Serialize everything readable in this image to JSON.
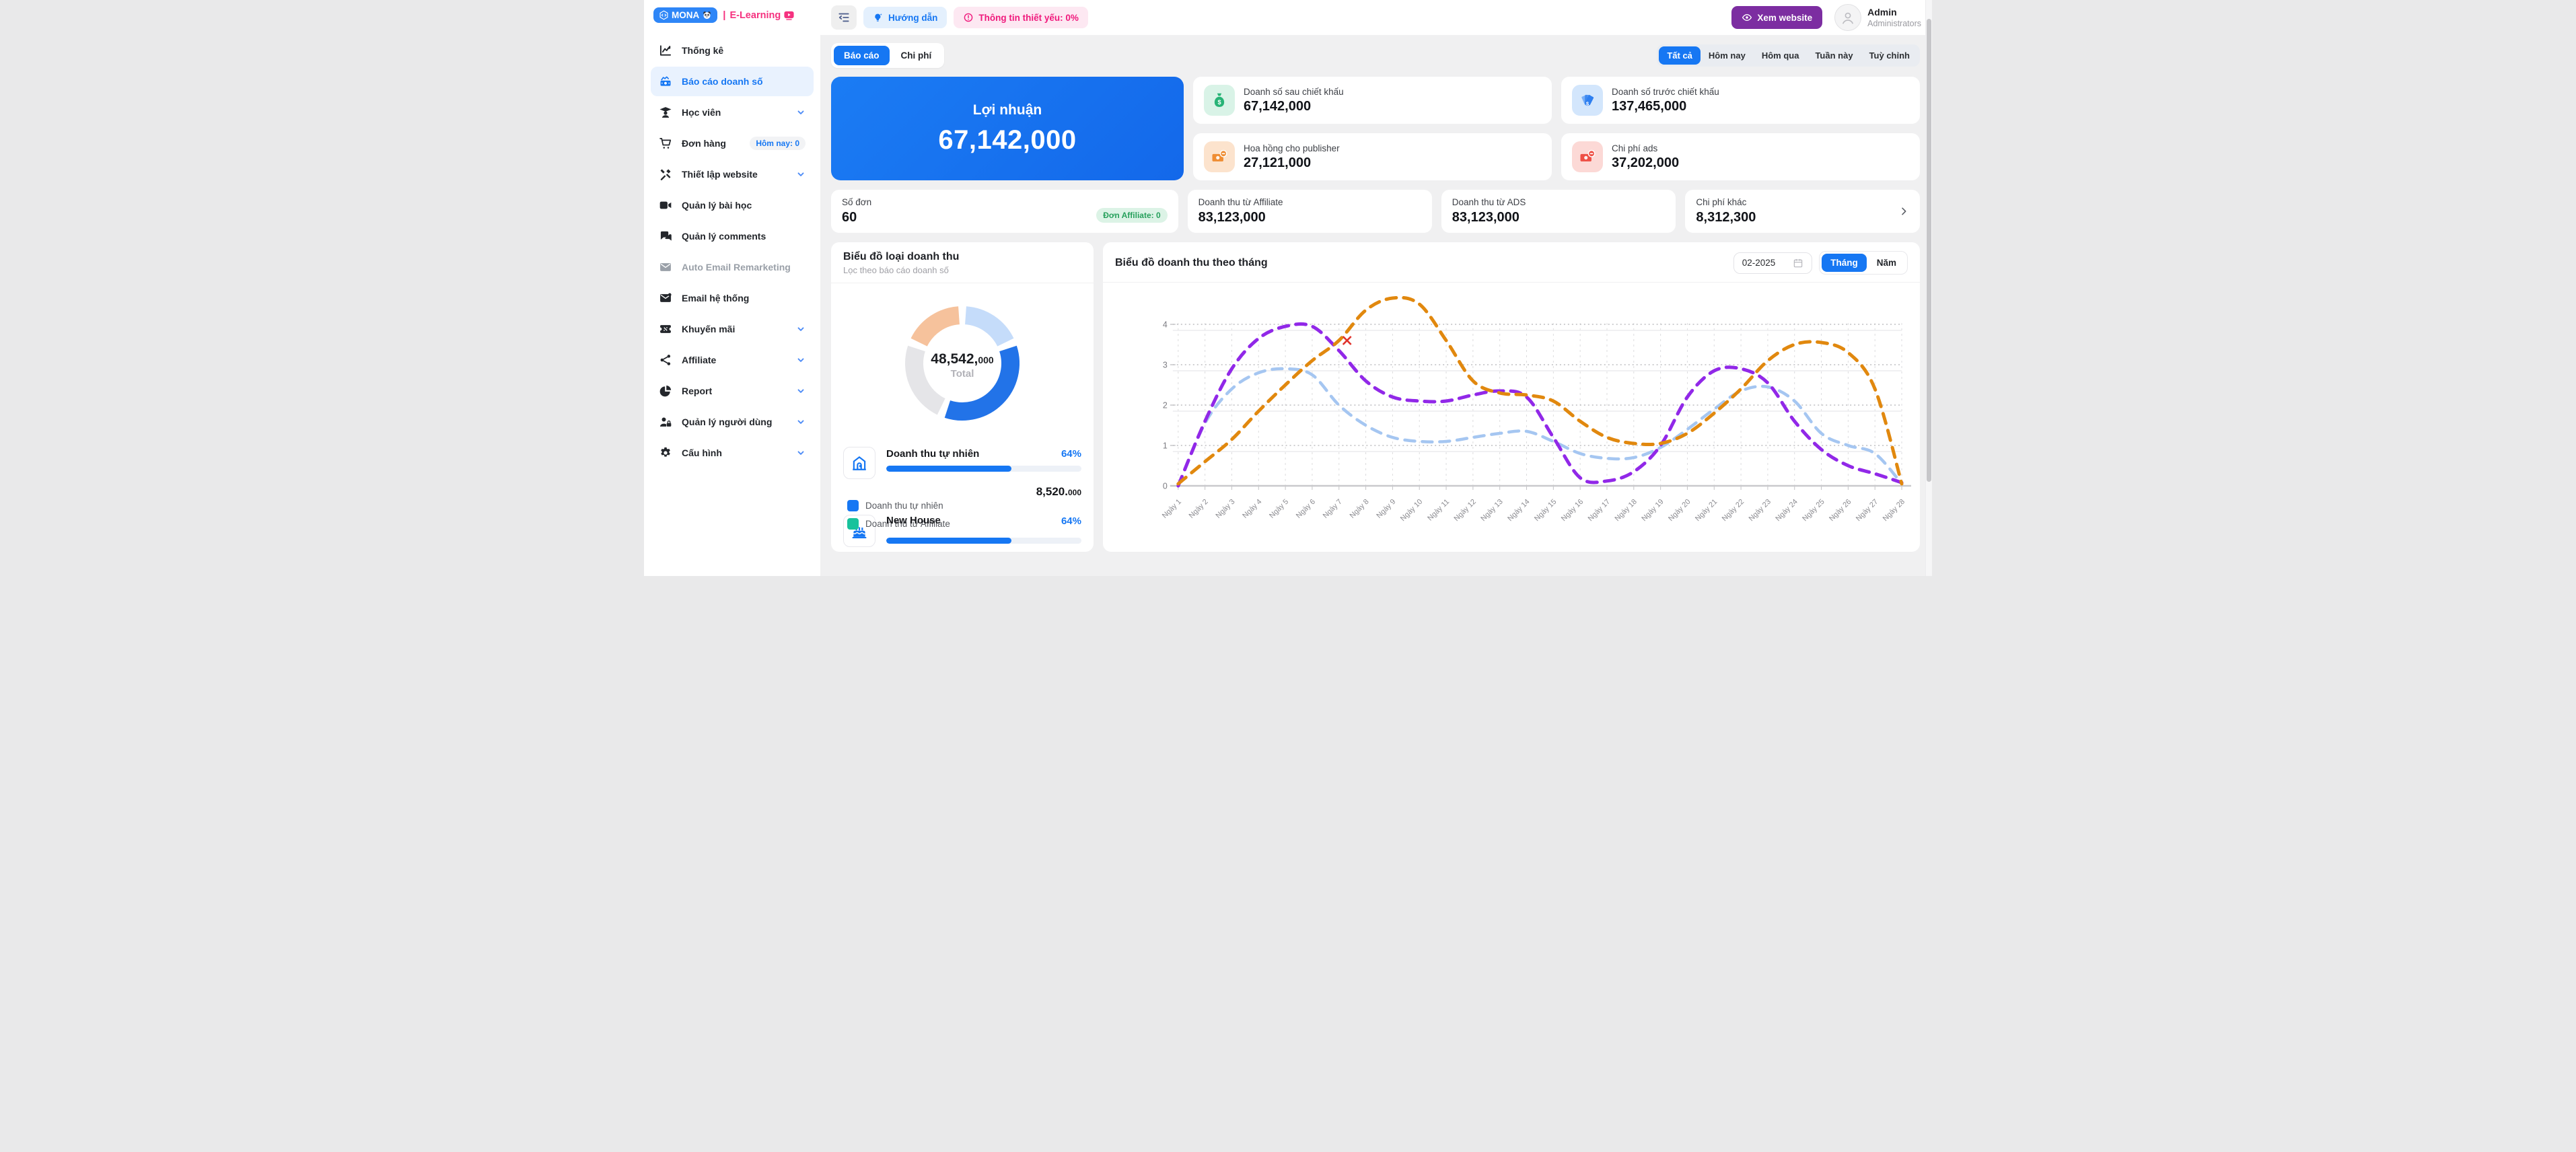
{
  "brand": {
    "name": "MONA",
    "separator": "|",
    "product": "E-Learning",
    "pill_color": "#2e86f7",
    "product_color": "#f5317f"
  },
  "topbar": {
    "guide_label": "Hướng dẫn",
    "essential_label": "Thông tin thiết yếu: 0%",
    "view_website_label": "Xem website",
    "user_name": "Admin",
    "user_role": "Administrators"
  },
  "sidebar": {
    "items": [
      {
        "label": "Thống kê",
        "icon": "chart-line-icon"
      },
      {
        "label": "Báo cáo doanh số",
        "icon": "sales-report-icon",
        "active": true
      },
      {
        "label": "Học viên",
        "icon": "student-icon",
        "chevron": true
      },
      {
        "label": "Đơn hàng",
        "icon": "cart-icon",
        "badge": "Hôm nay: 0"
      },
      {
        "label": "Thiết lập website",
        "icon": "tools-icon",
        "chevron": true
      },
      {
        "label": "Quản lý bài học",
        "icon": "video-icon"
      },
      {
        "label": "Quản lý comments",
        "icon": "comments-icon"
      },
      {
        "label": "Auto Email Remarketing",
        "icon": "email-auto-icon",
        "disabled": true
      },
      {
        "label": "Email hệ thống",
        "icon": "email-icon"
      },
      {
        "label": "Khuyến mãi",
        "icon": "promo-icon",
        "chevron": true
      },
      {
        "label": "Affiliate",
        "icon": "share-icon",
        "chevron": true
      },
      {
        "label": "Report",
        "icon": "pie-icon",
        "chevron": true
      },
      {
        "label": "Quản lý người dùng",
        "icon": "user-lock-icon",
        "chevron": true
      },
      {
        "label": "Cấu hình",
        "icon": "gear-icon",
        "chevron": true
      }
    ]
  },
  "tabs": [
    {
      "label": "Báo cáo",
      "active": true
    },
    {
      "label": "Chi phí",
      "active": false
    }
  ],
  "range_filters": [
    {
      "label": "Tất cả",
      "active": true
    },
    {
      "label": "Hôm nay",
      "active": false
    },
    {
      "label": "Hôm qua",
      "active": false
    },
    {
      "label": "Tuần này",
      "active": false
    },
    {
      "label": "Tuỳ chỉnh",
      "active": false
    }
  ],
  "profit_card": {
    "label": "Lợi nhuận",
    "value": "67,142,000"
  },
  "stat_cards": [
    {
      "label": "Doanh số sau chiết khấu",
      "value": "67,142,000",
      "icon": "money-bag-icon",
      "color": "#27b376",
      "bg": "#d9f3e7"
    },
    {
      "label": "Doanh số trước chiết khấu",
      "value": "137,465,000",
      "icon": "money-fan-icon",
      "color": "#2e7ff0",
      "bg": "#d3e6fc"
    },
    {
      "label": "Hoa hồng cho publisher",
      "value": "27,121,000",
      "icon": "money-minus-icon",
      "color": "#ef8d33",
      "bg": "#fce3cd"
    },
    {
      "label": "Chi phí ads",
      "value": "37,202,000",
      "icon": "money-minus-icon",
      "color": "#ee4f45",
      "bg": "#fcd9d6"
    }
  ],
  "summary_cards": [
    {
      "label": "Số đơn",
      "value": "60",
      "badge": "Đơn Affiliate: 0"
    },
    {
      "label": "Doanh thu từ Affiliate",
      "value": "83,123,000"
    },
    {
      "label": "Doanh thu từ ADS",
      "value": "83,123,000"
    },
    {
      "label": "Chi phí khác",
      "value": "8,312,300",
      "chevron": true
    }
  ],
  "donut_panel": {
    "title": "Biểu đồ loại doanh thu",
    "subtitle": "Lọc theo báo cáo doanh số",
    "total_main": "48,542,",
    "total_sub": "000",
    "total_label": "Total",
    "item1": {
      "icon": "house-icon",
      "title": "Doanh thu tự nhiên",
      "percent": "64%",
      "percent_value": 64,
      "value_main": "8,520.",
      "value_sub": "000"
    },
    "item2": {
      "icon": "cake-icon",
      "title": "New House",
      "percent": "64%",
      "percent_value": 64
    },
    "legend": [
      {
        "label": "Doanh thu tự nhiên",
        "color": "#1677f3"
      },
      {
        "label": "Doanh thu từ Affiliate",
        "color": "#18c29c"
      }
    ]
  },
  "chart_panel": {
    "title": "Biểu đồ doanh thu theo tháng",
    "date_value": "02-2025",
    "toggle": [
      {
        "label": "Tháng",
        "active": true
      },
      {
        "label": "Năm",
        "active": false
      }
    ]
  },
  "chart_data": [
    {
      "type": "donut",
      "title": "Biểu đồ loại doanh thu",
      "center_total": "48,542,000",
      "center_label": "Total",
      "segments": [
        {
          "name": "peach",
          "color": "#f6c29c",
          "from_deg": 296,
          "to_deg": 356,
          "approx_pct": 17
        },
        {
          "name": "light-blue",
          "color": "#c5dcfa",
          "from_deg": 4,
          "to_deg": 64,
          "approx_pct": 17
        },
        {
          "name": "blue",
          "color": "#2273e8",
          "from_deg": 72,
          "to_deg": 198,
          "approx_pct": 35
        },
        {
          "name": "gray",
          "color": "#e5e5e8",
          "from_deg": 206,
          "to_deg": 288,
          "approx_pct": 23
        }
      ]
    },
    {
      "type": "line",
      "title": "Biểu đồ doanh thu theo tháng",
      "xlabel": "",
      "ylabel": "",
      "ylim": [
        0,
        4
      ],
      "yticks": [
        0,
        1,
        2,
        3,
        4
      ],
      "grid": true,
      "line_style": "dashed-smooth",
      "categories": [
        "Ngày 1",
        "Ngày 2",
        "Ngày 3",
        "Ngày 4",
        "Ngày 5",
        "Ngày 6",
        "Ngày 7",
        "Ngày 8",
        "Ngày 9",
        "Ngày 10",
        "Ngày 11",
        "Ngày 12",
        "Ngày 13",
        "Ngày 14",
        "Ngày 15",
        "Ngày 16",
        "Ngày 17",
        "Ngày 18",
        "Ngày 19",
        "Ngày 20",
        "Ngày 21",
        "Ngày 22",
        "Ngày 23",
        "Ngày 24",
        "Ngày 25",
        "Ngày 26",
        "Ngày 27",
        "Ngày 28"
      ],
      "series": [
        {
          "name": "blue-series",
          "color": "#a5c6f1",
          "values": [
            0,
            1.55,
            2.4,
            2.8,
            2.9,
            2.75,
            2.0,
            1.5,
            1.2,
            1.1,
            1.1,
            1.2,
            1.3,
            1.35,
            1.1,
            0.8,
            0.68,
            0.7,
            0.95,
            1.4,
            1.9,
            2.35,
            2.45,
            2.1,
            1.3,
            1.0,
            0.8,
            0.05
          ]
        },
        {
          "name": "purple-series",
          "color": "#9128e8",
          "values": [
            0,
            1.6,
            2.9,
            3.65,
            3.95,
            3.95,
            3.35,
            2.6,
            2.2,
            2.1,
            2.1,
            2.25,
            2.35,
            2.2,
            1.2,
            0.2,
            0.12,
            0.35,
            1.0,
            2.2,
            2.85,
            2.9,
            2.55,
            1.6,
            0.9,
            0.5,
            0.3,
            0.08
          ]
        },
        {
          "name": "orange-series",
          "color": "#e1880e",
          "values": [
            0.05,
            0.6,
            1.15,
            1.85,
            2.5,
            3.1,
            3.6,
            4.35,
            4.65,
            4.5,
            3.6,
            2.6,
            2.3,
            2.25,
            2.1,
            1.6,
            1.2,
            1.05,
            1.05,
            1.3,
            1.8,
            2.4,
            3.1,
            3.5,
            3.55,
            3.3,
            2.4,
            0.05
          ]
        }
      ],
      "annotations": [
        {
          "shape": "x-marker",
          "color": "#e0312b",
          "day": 7.3,
          "value": 3.6
        }
      ]
    }
  ]
}
